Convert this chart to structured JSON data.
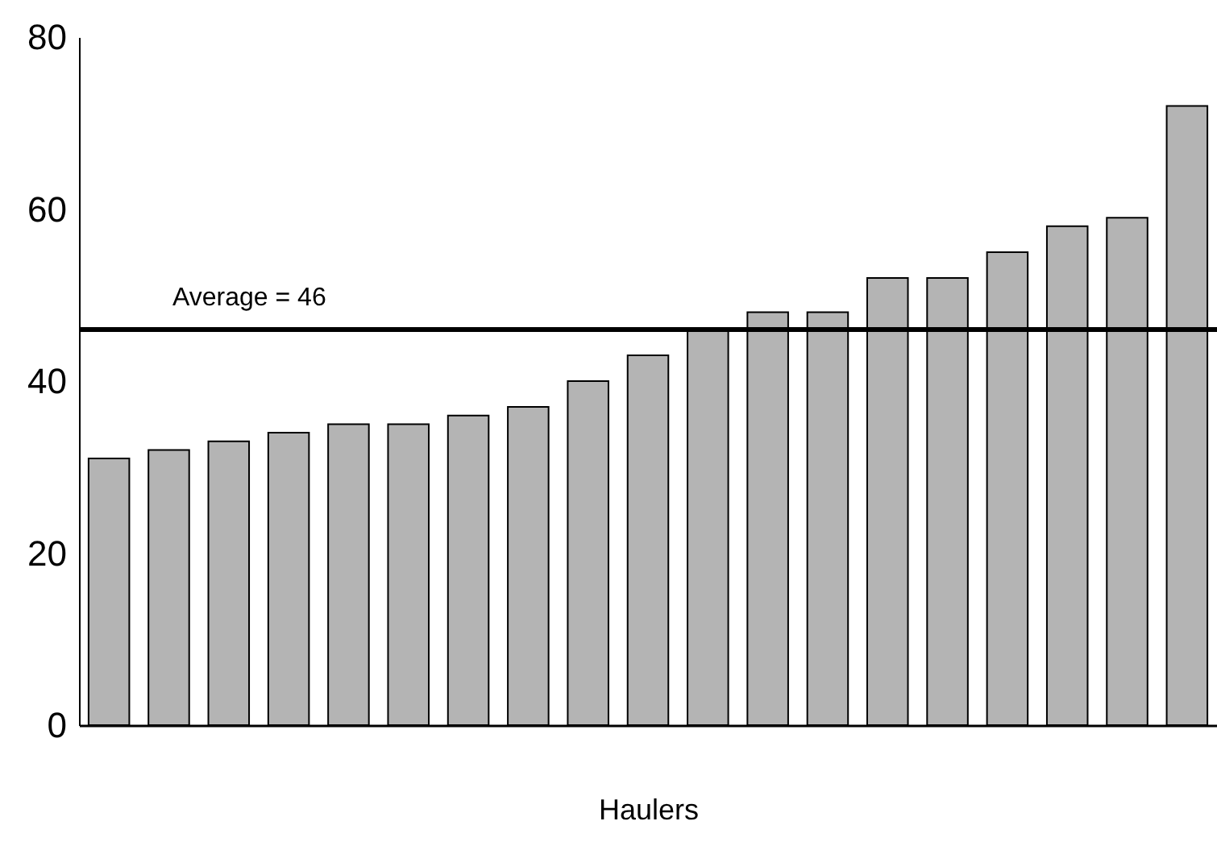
{
  "chart_data": {
    "type": "bar",
    "xlabel": "Haulers",
    "categories": [
      null,
      null,
      null,
      null,
      null,
      null,
      null,
      null,
      null,
      null,
      null,
      null,
      null,
      null,
      null,
      null,
      null,
      null,
      null
    ],
    "values": [
      31,
      32,
      33,
      34,
      35,
      35,
      36,
      37,
      40,
      43,
      46,
      48,
      48,
      52,
      52,
      55,
      58,
      59,
      72
    ],
    "color": "#b4b4b4",
    "ylim": [
      0,
      80
    ],
    "yticks": [
      0,
      20,
      40,
      60,
      80
    ],
    "grid": false,
    "ref_lines": [
      {
        "axis": "y",
        "value": 46,
        "label": "Average = 46",
        "color": "#000000"
      }
    ]
  }
}
